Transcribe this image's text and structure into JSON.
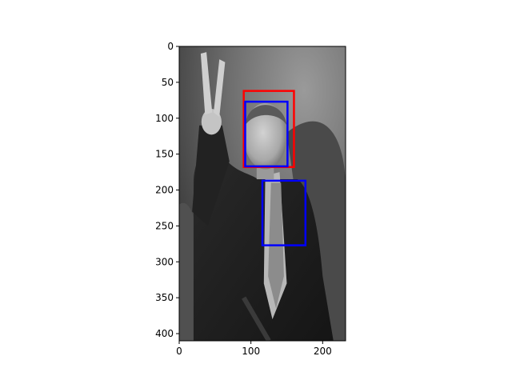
{
  "chart_data": {
    "type": "image",
    "image_description_icon": "grayscale-photo-icon",
    "xlim": [
      0,
      232
    ],
    "ylim": [
      410,
      0
    ],
    "x_ticks": [
      0,
      100,
      200
    ],
    "y_ticks": [
      0,
      50,
      100,
      150,
      200,
      250,
      300,
      350,
      400
    ],
    "boxes": [
      {
        "color": "#ff0000",
        "x0": 90,
        "y0": 62,
        "x1": 160,
        "y1": 168
      },
      {
        "color": "#0000ff",
        "x0": 92,
        "y0": 77,
        "x1": 151,
        "y1": 167
      },
      {
        "color": "#0000ff",
        "x0": 116,
        "y0": 187,
        "x1": 176,
        "y1": 277
      }
    ]
  }
}
